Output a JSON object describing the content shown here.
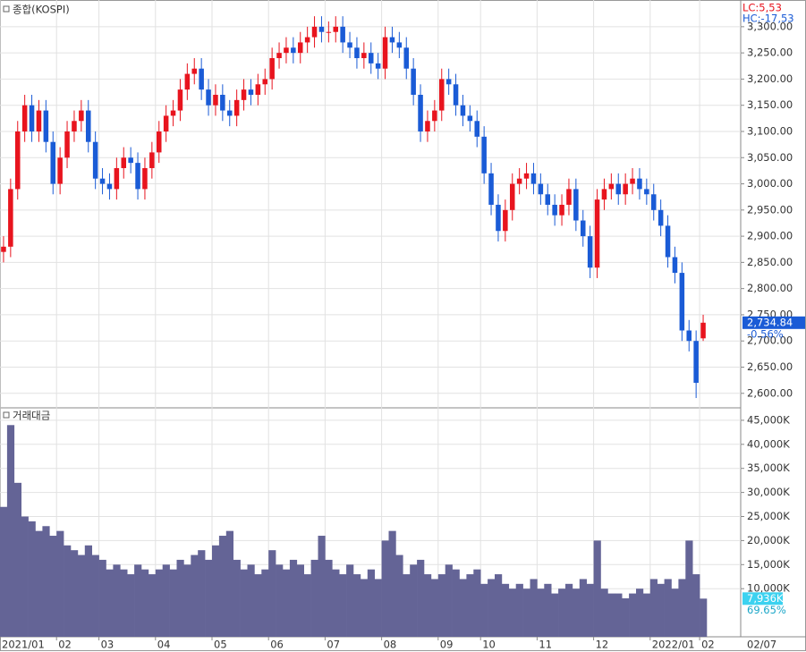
{
  "chart_data": [
    {
      "type": "candlestick",
      "title": "종합(KOSPI)",
      "categories": [
        "2021/01",
        null,
        null,
        null,
        null,
        null,
        null,
        null,
        "02",
        null,
        null,
        null,
        null,
        null,
        "03",
        null,
        null,
        null,
        null,
        null,
        null,
        null,
        "04",
        null,
        null,
        null,
        null,
        null,
        null,
        null,
        "05",
        null,
        null,
        null,
        null,
        null,
        null,
        null,
        "06",
        null,
        null,
        null,
        null,
        null,
        null,
        null,
        "07",
        null,
        null,
        null,
        null,
        null,
        null,
        null,
        "08",
        null,
        null,
        null,
        null,
        null,
        null,
        null,
        "09",
        null,
        null,
        null,
        null,
        null,
        "10",
        null,
        null,
        null,
        null,
        null,
        null,
        null,
        "11",
        null,
        null,
        null,
        null,
        null,
        null,
        null,
        "12",
        null,
        null,
        null,
        null,
        null,
        null,
        null,
        "2022/01",
        null,
        null,
        null,
        null,
        null,
        null,
        "02"
      ],
      "open": [
        2870,
        2880,
        2990,
        3100,
        3150,
        3100,
        3140,
        3080,
        3000,
        3050,
        3100,
        3120,
        3140,
        3080,
        3010,
        3000,
        2990,
        3030,
        3050,
        3040,
        2990,
        3030,
        3060,
        3100,
        3130,
        3140,
        3180,
        3210,
        3220,
        3180,
        3150,
        3170,
        3140,
        3130,
        3160,
        3180,
        3170,
        3190,
        3200,
        3240,
        3250,
        3260,
        3250,
        3270,
        3280,
        3300,
        3290,
        3290,
        3300,
        3270,
        3260,
        3240,
        3250,
        3230,
        3220,
        3280,
        3270,
        3260,
        3220,
        3170,
        3100,
        3120,
        3140,
        3200,
        3190,
        3150,
        3130,
        3120,
        3090,
        3020,
        2960,
        2910,
        2950,
        3000,
        3010,
        3020,
        3000,
        2980,
        2960,
        2940,
        2960,
        2990,
        2930,
        2900,
        2840,
        2970,
        2990,
        3000,
        2980,
        3000,
        3010,
        2990,
        2980,
        2950,
        2920,
        2860,
        2830,
        2720,
        2700,
        2705
      ],
      "high": [
        2900,
        3010,
        3120,
        3170,
        3170,
        3160,
        3160,
        3100,
        3070,
        3120,
        3140,
        3160,
        3160,
        3100,
        3030,
        3020,
        3050,
        3070,
        3070,
        3060,
        3050,
        3080,
        3120,
        3150,
        3160,
        3200,
        3230,
        3240,
        3240,
        3200,
        3190,
        3190,
        3160,
        3180,
        3200,
        3200,
        3210,
        3220,
        3260,
        3270,
        3280,
        3280,
        3290,
        3300,
        3320,
        3320,
        3310,
        3320,
        3320,
        3290,
        3280,
        3270,
        3270,
        3250,
        3300,
        3300,
        3290,
        3280,
        3240,
        3190,
        3140,
        3160,
        3220,
        3220,
        3210,
        3170,
        3150,
        3140,
        3110,
        3040,
        2980,
        2970,
        3020,
        3030,
        3040,
        3040,
        3020,
        3000,
        2980,
        2980,
        3010,
        3010,
        2950,
        2920,
        2990,
        3010,
        3020,
        3020,
        3020,
        3030,
        3030,
        3010,
        3000,
        2970,
        2940,
        2880,
        2850,
        2740,
        2720,
        2750
      ],
      "low": [
        2850,
        2860,
        2970,
        3080,
        3080,
        3080,
        3060,
        2980,
        2980,
        3030,
        3080,
        3100,
        3060,
        2990,
        2980,
        2970,
        2970,
        3010,
        3020,
        2970,
        2970,
        3010,
        3040,
        3080,
        3110,
        3120,
        3160,
        3190,
        3160,
        3130,
        3130,
        3120,
        3110,
        3110,
        3140,
        3150,
        3150,
        3170,
        3180,
        3220,
        3230,
        3230,
        3230,
        3250,
        3260,
        3270,
        3270,
        3270,
        3250,
        3240,
        3220,
        3220,
        3210,
        3200,
        3200,
        3250,
        3240,
        3200,
        3150,
        3080,
        3080,
        3100,
        3120,
        3170,
        3130,
        3110,
        3100,
        3070,
        3000,
        2940,
        2890,
        2890,
        2930,
        2980,
        2990,
        2980,
        2960,
        2940,
        2920,
        2920,
        2940,
        2910,
        2880,
        2820,
        2820,
        2950,
        2970,
        2960,
        2960,
        2980,
        2970,
        2960,
        2930,
        2900,
        2840,
        2810,
        2700,
        2680,
        2591,
        2700
      ],
      "close": [
        2880,
        2990,
        3100,
        3150,
        3100,
        3140,
        3080,
        3000,
        3050,
        3100,
        3120,
        3140,
        3080,
        3010,
        3000,
        2990,
        3030,
        3050,
        3040,
        2990,
        3030,
        3060,
        3100,
        3130,
        3140,
        3180,
        3210,
        3220,
        3180,
        3150,
        3170,
        3140,
        3130,
        3160,
        3180,
        3170,
        3190,
        3200,
        3240,
        3250,
        3260,
        3250,
        3270,
        3280,
        3300,
        3290,
        3290,
        3300,
        3270,
        3260,
        3240,
        3250,
        3230,
        3220,
        3280,
        3270,
        3260,
        3220,
        3170,
        3100,
        3120,
        3140,
        3200,
        3190,
        3150,
        3130,
        3120,
        3090,
        3020,
        2960,
        2910,
        2950,
        3000,
        3010,
        3020,
        3000,
        2980,
        2960,
        2940,
        2960,
        2990,
        2930,
        2900,
        2840,
        2970,
        2990,
        3000,
        2980,
        3000,
        3010,
        2990,
        2980,
        2950,
        2920,
        2860,
        2830,
        2720,
        2700,
        2620,
        2734.84
      ],
      "up_color": "#e8141e",
      "down_color": "#1a5bd6",
      "ylim": [
        2574,
        3351
      ],
      "yticks": [
        {
          "value": 2600,
          "label": "2,600.00"
        },
        {
          "value": 2650,
          "label": "2,650.00"
        },
        {
          "value": 2700,
          "label": "2,700.00"
        },
        {
          "value": 2750,
          "label": "2,750.00"
        },
        {
          "value": 2800,
          "label": "2,800.00"
        },
        {
          "value": 2850,
          "label": "2,850.00"
        },
        {
          "value": 2900,
          "label": "2,900.00"
        },
        {
          "value": 2950,
          "label": "2,950.00"
        },
        {
          "value": 3000,
          "label": "3,000.00"
        },
        {
          "value": 3050,
          "label": "3,050.00"
        },
        {
          "value": 3100,
          "label": "3,100.00"
        },
        {
          "value": 3150,
          "label": "3,150.00"
        },
        {
          "value": 3200,
          "label": "3,200.00"
        },
        {
          "value": 3250,
          "label": "3,250.00"
        },
        {
          "value": 3300,
          "label": "3,300.00"
        }
      ],
      "grid": true,
      "lc_label": "LC:5,53",
      "hc_label": "HC:-17,53",
      "last_price": {
        "value": 2734.84,
        "label": "2,734.84"
      },
      "change_label": "-0.56%"
    },
    {
      "type": "bar",
      "title": "거래대금",
      "values": [
        27000,
        44000,
        32000,
        25000,
        24000,
        22000,
        23000,
        21000,
        22000,
        19000,
        18000,
        17000,
        19000,
        17000,
        16000,
        14000,
        15000,
        14000,
        13000,
        15000,
        14000,
        13000,
        14000,
        15000,
        14000,
        16000,
        15000,
        17000,
        18000,
        16000,
        19000,
        21000,
        22000,
        16000,
        14000,
        15000,
        13000,
        14000,
        18000,
        15000,
        14000,
        16000,
        15000,
        13000,
        16000,
        21000,
        16000,
        14000,
        13000,
        15000,
        13000,
        12000,
        14000,
        12000,
        20000,
        22000,
        17000,
        13000,
        15000,
        16000,
        13000,
        12000,
        13000,
        15000,
        14000,
        12000,
        13000,
        14000,
        11000,
        12000,
        13000,
        11000,
        10000,
        11000,
        10000,
        12000,
        10000,
        11000,
        9000,
        10000,
        11000,
        10000,
        12000,
        11000,
        20000,
        10000,
        9000,
        9000,
        8000,
        9000,
        10000,
        9000,
        12000,
        11000,
        12000,
        10000,
        12000,
        20000,
        13000,
        7936
      ],
      "color": "#646496",
      "ylim": [
        0,
        47400
      ],
      "yticks": [
        {
          "value": 10000,
          "label": "10,000K"
        },
        {
          "value": 15000,
          "label": "15,000K"
        },
        {
          "value": 20000,
          "label": "20,000K"
        },
        {
          "value": 25000,
          "label": "25,000K"
        },
        {
          "value": 30000,
          "label": "30,000K"
        },
        {
          "value": 35000,
          "label": "35,000K"
        },
        {
          "value": 40000,
          "label": "40,000K"
        },
        {
          "value": 45000,
          "label": "45,000K"
        }
      ],
      "grid": true,
      "last_volume": {
        "value": 7936,
        "label": "7,936K"
      },
      "ratio_label": "69.65%",
      "cursor_date": "02/07"
    }
  ]
}
